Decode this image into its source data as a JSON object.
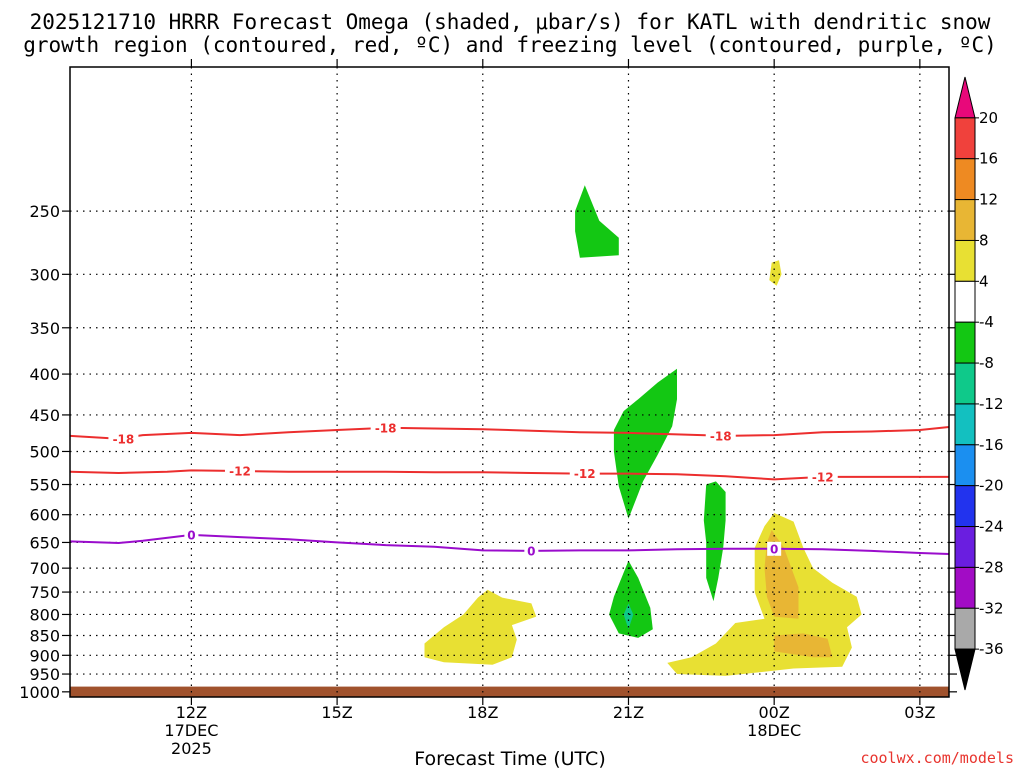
{
  "chart_data": {
    "type": "time-height",
    "title_line1": "2025121710 HRRR Forecast Omega (shaded, μbar/s) for KATL with dendritic snow",
    "title_line2": "growth region (contoured, red, ºC) and freezing level (contoured, purple, ºC)",
    "xlabel": "Forecast Time (UTC)",
    "credit": "coolwx.com/models",
    "x_range_hours": [
      9.5,
      27.6
    ],
    "y_range_hpa": [
      165,
      1015
    ],
    "x_ticks": [
      {
        "hour": 12,
        "label": "12Z",
        "sub": [
          "17DEC",
          "2025"
        ]
      },
      {
        "hour": 15,
        "label": "15Z",
        "sub": []
      },
      {
        "hour": 18,
        "label": "18Z",
        "sub": []
      },
      {
        "hour": 21,
        "label": "21Z",
        "sub": []
      },
      {
        "hour": 24,
        "label": "00Z",
        "sub": [
          "18DEC"
        ]
      },
      {
        "hour": 27,
        "label": "03Z",
        "sub": []
      }
    ],
    "y_ticks": [
      250,
      300,
      350,
      400,
      450,
      500,
      550,
      600,
      650,
      700,
      750,
      800,
      850,
      900,
      950,
      1000
    ],
    "y_labeled": [
      250,
      300,
      350,
      400,
      450,
      500,
      550,
      600,
      650,
      700,
      750,
      800,
      850,
      900,
      950,
      1000
    ],
    "y_dotted_grid": [
      250,
      300,
      350,
      400,
      450,
      500,
      550,
      600,
      650,
      700,
      750,
      800,
      850,
      900,
      950
    ],
    "x_dotted_grid": [
      12,
      15,
      18,
      21,
      24,
      27
    ],
    "ground": {
      "level_hpa": 985,
      "color": "#a0522d"
    },
    "colorbar": {
      "labels": [
        20,
        16,
        12,
        8,
        4,
        -4,
        -8,
        -12,
        -16,
        -20,
        -24,
        -28,
        -32,
        -36
      ],
      "bins": [
        {
          "label": "",
          "color": "#e8087a"
        },
        {
          "label": "20..16",
          "color": "#f0413c"
        },
        {
          "label": "16..12",
          "color": "#ee8a22"
        },
        {
          "label": "12..8",
          "color": "#e8b634"
        },
        {
          "label": "8..4",
          "color": "#e8e033"
        },
        {
          "label": "4..-4",
          "color": "#ffffff"
        },
        {
          "label": "-4..-8",
          "color": "#13c713"
        },
        {
          "label": "-8..-12",
          "color": "#0fc98a"
        },
        {
          "label": "-12..-16",
          "color": "#13c0c0"
        },
        {
          "label": "-16..-20",
          "color": "#1b8ff0"
        },
        {
          "label": "-20..-24",
          "color": "#2233ee"
        },
        {
          "label": "-24..-28",
          "color": "#6a1ee0"
        },
        {
          "label": "-28..-32",
          "color": "#a20cc5"
        },
        {
          "label": "-32..-36",
          "color": "#a9a9a9"
        },
        {
          "label": "",
          "color": "#000000"
        }
      ]
    },
    "shaded_regions": [
      {
        "name": "green-upper",
        "color": "#13c713",
        "points": [
          [
            19.9,
            250
          ],
          [
            20.1,
            232
          ],
          [
            20.4,
            257
          ],
          [
            20.8,
            270
          ],
          [
            20.8,
            284
          ],
          [
            20.0,
            286
          ],
          [
            19.9,
            265
          ]
        ]
      },
      {
        "name": "green-mid",
        "color": "#13c713",
        "points": [
          [
            21.0,
            607
          ],
          [
            20.8,
            553
          ],
          [
            20.7,
            500
          ],
          [
            20.7,
            470
          ],
          [
            20.9,
            445
          ],
          [
            21.2,
            430
          ],
          [
            21.6,
            410
          ],
          [
            22.0,
            394
          ],
          [
            22.0,
            430
          ],
          [
            21.9,
            465
          ],
          [
            21.6,
            505
          ],
          [
            21.3,
            545
          ]
        ]
      },
      {
        "name": "green-right",
        "color": "#13c713",
        "points": [
          [
            22.6,
            550
          ],
          [
            22.8,
            545
          ],
          [
            23.0,
            562
          ],
          [
            23.0,
            610
          ],
          [
            22.95,
            660
          ],
          [
            22.85,
            720
          ],
          [
            22.75,
            770
          ],
          [
            22.6,
            720
          ],
          [
            22.6,
            650
          ],
          [
            22.55,
            610
          ]
        ]
      },
      {
        "name": "green-low",
        "color": "#13c713",
        "points": [
          [
            21.0,
            685
          ],
          [
            21.2,
            720
          ],
          [
            21.45,
            785
          ],
          [
            21.5,
            835
          ],
          [
            21.2,
            856
          ],
          [
            20.8,
            845
          ],
          [
            20.6,
            800
          ],
          [
            20.7,
            760
          ]
        ]
      },
      {
        "name": "teal-spot",
        "color": "#0fc98a",
        "points": [
          [
            21.0,
            775
          ],
          [
            21.1,
            800
          ],
          [
            21.0,
            835
          ],
          [
            20.9,
            800
          ]
        ]
      },
      {
        "name": "yellow-small-300",
        "color": "#e8e033",
        "points": [
          [
            23.9,
            305
          ],
          [
            23.95,
            290
          ],
          [
            24.1,
            288
          ],
          [
            24.15,
            300
          ],
          [
            24.05,
            310
          ]
        ]
      },
      {
        "name": "yellow-left",
        "color": "#e8e033",
        "points": [
          [
            16.8,
            870
          ],
          [
            17.2,
            830
          ],
          [
            17.6,
            800
          ],
          [
            17.9,
            762
          ],
          [
            18.1,
            745
          ],
          [
            18.4,
            762
          ],
          [
            19.0,
            775
          ],
          [
            19.1,
            805
          ],
          [
            18.6,
            825
          ],
          [
            18.7,
            860
          ],
          [
            18.6,
            905
          ],
          [
            18.2,
            925
          ],
          [
            17.2,
            918
          ],
          [
            16.8,
            905
          ]
        ]
      },
      {
        "name": "yellow-right",
        "color": "#e8e033",
        "points": [
          [
            24.0,
            597
          ],
          [
            24.4,
            612
          ],
          [
            24.6,
            660
          ],
          [
            24.8,
            700
          ],
          [
            25.2,
            730
          ],
          [
            25.7,
            760
          ],
          [
            25.8,
            800
          ],
          [
            25.5,
            830
          ],
          [
            25.6,
            880
          ],
          [
            25.4,
            930
          ],
          [
            24.4,
            935
          ],
          [
            23.0,
            955
          ],
          [
            22.0,
            950
          ],
          [
            21.8,
            920
          ],
          [
            22.3,
            905
          ],
          [
            22.8,
            870
          ],
          [
            23.2,
            820
          ],
          [
            23.8,
            810
          ],
          [
            23.6,
            750
          ],
          [
            23.6,
            660
          ],
          [
            23.8,
            620
          ]
        ]
      },
      {
        "name": "orange-vertical",
        "color": "#e8b634",
        "points": [
          [
            23.95,
            627
          ],
          [
            24.2,
            660
          ],
          [
            24.5,
            740
          ],
          [
            24.5,
            810
          ],
          [
            24.0,
            805
          ],
          [
            23.85,
            760
          ],
          [
            23.8,
            700
          ],
          [
            23.85,
            650
          ]
        ]
      },
      {
        "name": "orange-low",
        "color": "#e8b634",
        "points": [
          [
            24.0,
            850
          ],
          [
            24.6,
            845
          ],
          [
            25.1,
            858
          ],
          [
            25.2,
            905
          ],
          [
            24.8,
            905
          ],
          [
            24.0,
            890
          ]
        ]
      }
    ],
    "contours": [
      {
        "name": "minus-18",
        "color": "#ec2e2e",
        "label": "-18",
        "points": [
          [
            9.5,
            478
          ],
          [
            10.5,
            482
          ],
          [
            11.0,
            477
          ],
          [
            12.0,
            474
          ],
          [
            13.0,
            477
          ],
          [
            14.0,
            473
          ],
          [
            15.0,
            470
          ],
          [
            16.0,
            467
          ],
          [
            17.0,
            468
          ],
          [
            18.0,
            469
          ],
          [
            19.0,
            471
          ],
          [
            20.0,
            473
          ],
          [
            21.0,
            474
          ],
          [
            22.0,
            476
          ],
          [
            23.0,
            478
          ],
          [
            24.0,
            477
          ],
          [
            25.0,
            473
          ],
          [
            26.0,
            472
          ],
          [
            27.0,
            470
          ],
          [
            27.6,
            466
          ]
        ],
        "labels": [
          [
            10.6,
            482
          ],
          [
            16.0,
            467
          ],
          [
            22.9,
            478
          ]
        ]
      },
      {
        "name": "minus-12",
        "color": "#ec2e2e",
        "label": "-12",
        "points": [
          [
            9.5,
            530
          ],
          [
            10.5,
            532
          ],
          [
            11.5,
            530
          ],
          [
            12.0,
            528
          ],
          [
            13.0,
            529
          ],
          [
            14.0,
            530
          ],
          [
            15.0,
            530
          ],
          [
            16.0,
            530
          ],
          [
            17.0,
            531
          ],
          [
            18.0,
            531
          ],
          [
            19.0,
            532
          ],
          [
            20.0,
            533
          ],
          [
            21.0,
            533
          ],
          [
            22.0,
            534
          ],
          [
            23.0,
            537
          ],
          [
            24.0,
            542
          ],
          [
            25.0,
            538
          ],
          [
            26.0,
            538
          ],
          [
            27.0,
            538
          ],
          [
            27.6,
            538
          ]
        ],
        "labels": [
          [
            13.0,
            529
          ],
          [
            20.1,
            533
          ],
          [
            25.0,
            538
          ]
        ]
      },
      {
        "name": "zero",
        "color": "#9a0ccc",
        "label": "0",
        "points": [
          [
            9.5,
            648
          ],
          [
            10.5,
            651
          ],
          [
            11.0,
            647
          ],
          [
            12.0,
            636
          ],
          [
            13.0,
            640
          ],
          [
            14.0,
            644
          ],
          [
            15.0,
            650
          ],
          [
            16.0,
            655
          ],
          [
            17.0,
            658
          ],
          [
            18.0,
            665
          ],
          [
            19.0,
            666
          ],
          [
            20.0,
            665
          ],
          [
            21.0,
            665
          ],
          [
            22.0,
            663
          ],
          [
            23.0,
            662
          ],
          [
            24.0,
            662
          ],
          [
            25.0,
            663
          ],
          [
            26.0,
            666
          ],
          [
            27.0,
            670
          ],
          [
            27.6,
            672
          ]
        ],
        "labels": [
          [
            12.0,
            636
          ],
          [
            19.0,
            666
          ],
          [
            24.0,
            662
          ]
        ]
      }
    ]
  }
}
